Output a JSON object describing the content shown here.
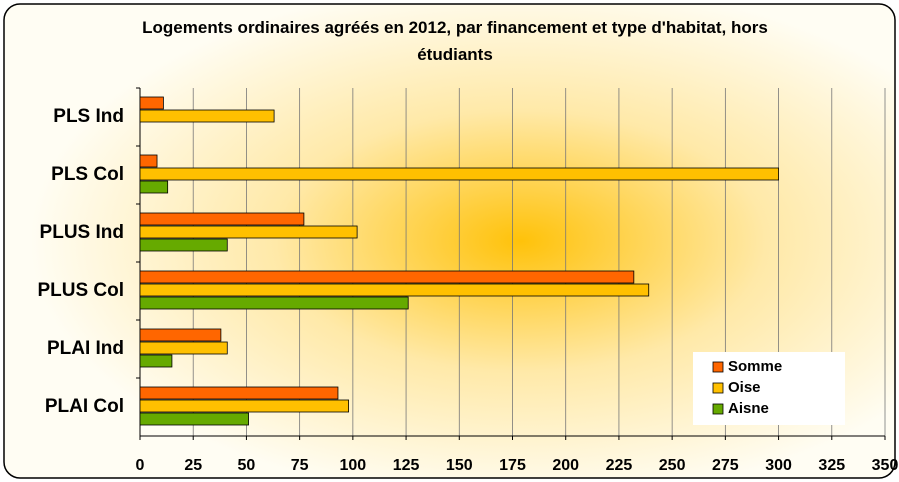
{
  "chart_data": {
    "type": "barh",
    "title": "Logements ordinaires agréés en 2012, par financement et type d'habitat, hors étudiants",
    "categories": [
      "PLS Ind",
      "PLS Col",
      "PLUS Ind",
      "PLUS Col",
      "PLAI Ind",
      "PLAI Col"
    ],
    "series": [
      {
        "name": "Somme",
        "color": "#ff6600",
        "values": [
          11,
          8,
          77,
          232,
          38,
          93
        ]
      },
      {
        "name": "Oise",
        "color": "#ffc000",
        "values": [
          63,
          300,
          102,
          239,
          41,
          98
        ]
      },
      {
        "name": "Aisne",
        "color": "#66aa00",
        "values": [
          null,
          13,
          41,
          126,
          15,
          51
        ]
      }
    ],
    "xlim": [
      0,
      350
    ],
    "xticks": [
      0,
      25,
      50,
      75,
      100,
      125,
      150,
      175,
      200,
      225,
      250,
      275,
      300,
      325,
      350
    ],
    "grid": true,
    "legend": "lower right"
  }
}
